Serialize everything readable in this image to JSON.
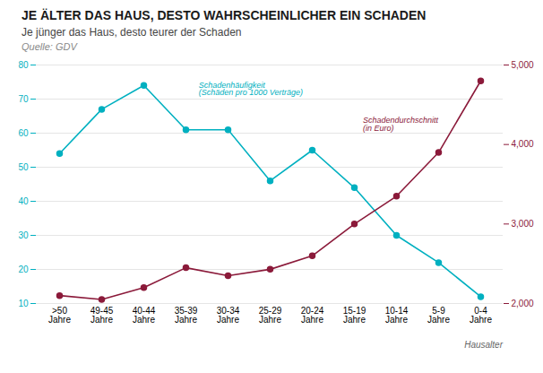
{
  "chart_data": {
    "type": "line",
    "title": "JE ÄLTER DAS HAUS, DESTO WAHRSCHEINLICHER EIN SCHADEN",
    "subtitle": "Je jünger das Haus, desto teurer der Schaden",
    "source": "Quelle: GDV",
    "x_label": "Hausalter",
    "categories": [
      ">50\nJahre",
      "49-45\nJahre",
      "40-44\nJahre",
      "35-39\nJahre",
      "30-34\nJahre",
      "25-29\nJahre",
      "20-24\nJahre",
      "15-19\nJahre",
      "10-14\nJahre",
      "5-9\nJahre",
      "0-4\nJahre"
    ],
    "series": [
      {
        "name": "Schadenhäufigkeit\n(Schäden pro 1000 Verträge)",
        "color": "#00B0C0",
        "marker": "circle",
        "axis": "y",
        "values": [
          54,
          67,
          74,
          61,
          61,
          46,
          55,
          44,
          30,
          22,
          12
        ]
      },
      {
        "name": "Schadendurchschnitt\n(in Euro)",
        "color": "#8B1A3A",
        "marker": "circle",
        "axis": "y2",
        "values": [
          2100,
          2050,
          2200,
          2450,
          2350,
          2430,
          2600,
          3000,
          3350,
          3900,
          4800
        ]
      }
    ],
    "ylim": [
      10,
      80
    ],
    "yticks": [
      10,
      20,
      30,
      40,
      50,
      60,
      70,
      80
    ],
    "y2lim": [
      2000,
      5000
    ],
    "y2ticks": [
      2000,
      3000,
      4000,
      5000
    ],
    "grid": true
  }
}
